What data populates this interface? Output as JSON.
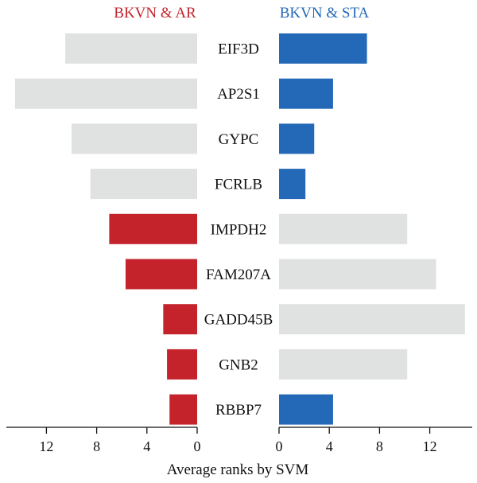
{
  "chart_data": {
    "type": "bar",
    "orientation": "horizontal-diverging",
    "xlabel": "Average ranks by SVM",
    "categories": [
      "EIF3D",
      "AP2S1",
      "GYPC",
      "FCRLB",
      "IMPDH2",
      "FAM207A",
      "GADD45B",
      "GNB2",
      "RBBP7"
    ],
    "panels": [
      {
        "side": "left",
        "title": "BKVN & AR",
        "title_color": "#c4232c",
        "values": [
          10.5,
          14.5,
          10.0,
          8.5,
          7.0,
          5.7,
          2.7,
          2.4,
          2.2
        ],
        "highlight": [
          false,
          false,
          false,
          false,
          true,
          true,
          true,
          true,
          true
        ],
        "xlim": [
          0,
          15.3
        ],
        "ticks": [
          "12",
          "8",
          "4",
          "0"
        ],
        "tick_values": [
          12,
          8,
          4,
          0
        ]
      },
      {
        "side": "right",
        "title": "BKVN & STA",
        "title_color": "#2469b8",
        "values": [
          7.0,
          4.3,
          2.8,
          2.1,
          10.2,
          12.5,
          14.8,
          10.2,
          4.3
        ],
        "highlight": [
          true,
          true,
          true,
          true,
          false,
          false,
          false,
          false,
          true
        ],
        "xlim": [
          0,
          15.3
        ],
        "ticks": [
          "0",
          "4",
          "8",
          "12"
        ],
        "tick_values": [
          0,
          4,
          8,
          12
        ]
      }
    ],
    "colors": {
      "left_highlight": "#c4232c",
      "right_highlight": "#2469b8",
      "default": "#e0e1e1"
    }
  }
}
